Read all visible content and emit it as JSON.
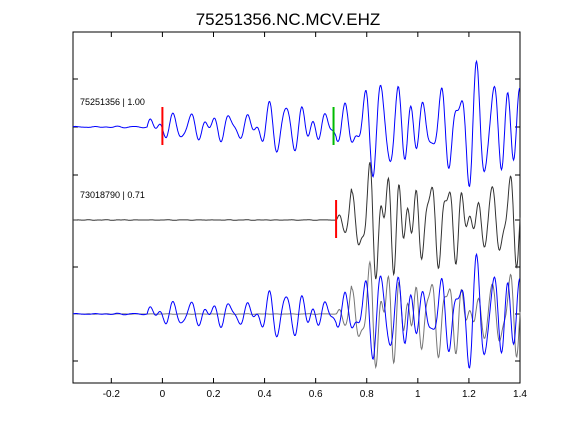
{
  "chart_data": {
    "type": "line",
    "title": "75251356.NC.MCV.EHZ",
    "xlabel": "",
    "ylabel": "",
    "xlim": [
      -0.35,
      1.4
    ],
    "x_ticks": [
      -0.2,
      0,
      0.2,
      0.4,
      0.6,
      0.8,
      1,
      1.2,
      1.4
    ],
    "x_tick_labels": [
      "-0.2",
      "0",
      "0.2",
      "0.4",
      "0.6",
      "0.8",
      "1",
      "1.2",
      "1.4"
    ],
    "grid": false,
    "colors": {
      "blue": "#0000ff",
      "gray": "#555555",
      "dark": "#333333",
      "red": "#ff0000",
      "green": "#00bb00"
    },
    "traces": [
      {
        "name": "75251356 | 1.00",
        "color": "#0000ff",
        "baseline_index": 0,
        "onset": -0.06,
        "picks": [
          {
            "x": 0.0,
            "color": "#ff0000"
          },
          {
            "x": 0.67,
            "color": "#00bb00"
          }
        ]
      },
      {
        "name": "73018790 | 0.71",
        "color": "#333333",
        "baseline_index": 1,
        "onset": 0.68,
        "picks": [
          {
            "x": 0.68,
            "color": "#ff0000"
          }
        ]
      },
      {
        "name": "",
        "overlay": true,
        "baseline_index": 2,
        "series_colors": [
          "#777777",
          "#0000ff"
        ]
      }
    ]
  }
}
